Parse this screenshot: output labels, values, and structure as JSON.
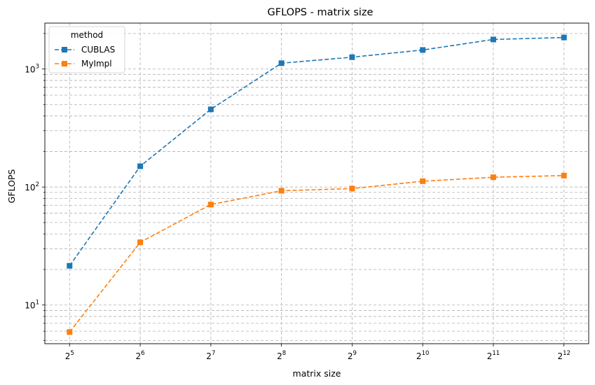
{
  "chart_data": {
    "type": "line",
    "title": "GFLOPS - matrix size",
    "xlabel": "matrix size",
    "ylabel": "GFLOPS",
    "x_scale": "log2",
    "y_scale": "log10",
    "x": [
      32,
      64,
      128,
      256,
      512,
      1024,
      2048,
      4096
    ],
    "x_tick_labels": [
      {
        "base": "2",
        "exp": "5"
      },
      {
        "base": "2",
        "exp": "6"
      },
      {
        "base": "2",
        "exp": "7"
      },
      {
        "base": "2",
        "exp": "8"
      },
      {
        "base": "2",
        "exp": "9"
      },
      {
        "base": "2",
        "exp": "10"
      },
      {
        "base": "2",
        "exp": "11"
      },
      {
        "base": "2",
        "exp": "12"
      }
    ],
    "y_tick_labels": [
      {
        "value": 10,
        "base": "10",
        "exp": "1"
      },
      {
        "value": 100,
        "base": "10",
        "exp": "2"
      },
      {
        "value": 1000,
        "base": "10",
        "exp": "3"
      }
    ],
    "ylim": [
      4.7,
      2450
    ],
    "grid": true,
    "legend": {
      "title": "method",
      "position": "top-left"
    },
    "series": [
      {
        "name": "CUBLAS",
        "color": "#1f77b4",
        "values": [
          21.5,
          150,
          455,
          1120,
          1260,
          1450,
          1780,
          1850
        ]
      },
      {
        "name": "MyImpl",
        "color": "#ff7f0e",
        "values": [
          5.9,
          34,
          71,
          93,
          97,
          112,
          121,
          125
        ]
      }
    ]
  }
}
